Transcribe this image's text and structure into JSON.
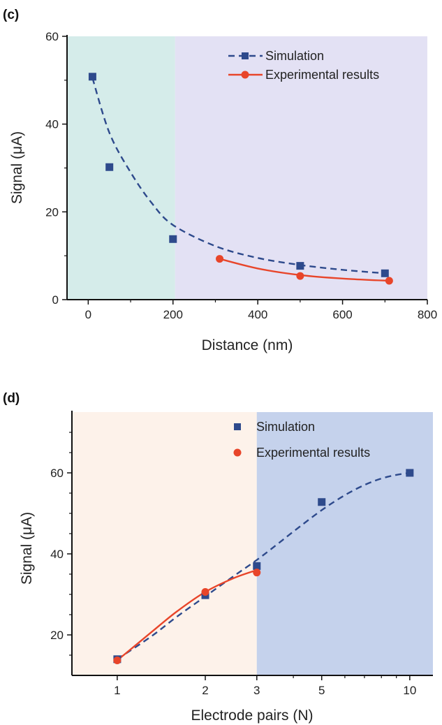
{
  "chart_data": [
    {
      "panel_label": "(c)",
      "type": "line",
      "xlabel": "Distance (nm)",
      "ylabel": "Signal (μA)",
      "xlim": [
        -50,
        800
      ],
      "ylim": [
        0,
        60
      ],
      "xticks": [
        0,
        200,
        400,
        600,
        800
      ],
      "yticks": [
        0,
        20,
        40,
        60
      ],
      "background_regions": [
        {
          "x_from": -50,
          "x_to": 205,
          "color": "#d5ecea"
        },
        {
          "x_from": 205,
          "x_to": 800,
          "color": "#e3e1f4"
        }
      ],
      "legend_position": "top-right",
      "series": [
        {
          "name": "Simulation",
          "color": "#2e4a8c",
          "marker": "square",
          "line_style": "dashed",
          "points": [
            [
              10,
              50.8
            ],
            [
              50,
              30.2
            ],
            [
              200,
              13.8
            ],
            [
              500,
              7.7
            ],
            [
              700,
              6.0
            ]
          ],
          "fit": [
            [
              10,
              50.5
            ],
            [
              50,
              38.0
            ],
            [
              100,
              29.0
            ],
            [
              150,
              22.0
            ],
            [
              200,
              17.0
            ],
            [
              300,
              12.2
            ],
            [
              400,
              9.5
            ],
            [
              500,
              7.9
            ],
            [
              600,
              6.8
            ],
            [
              700,
              6.0
            ]
          ]
        },
        {
          "name": "Experimental results",
          "color": "#e8452a",
          "marker": "circle",
          "line_style": "solid",
          "points": [
            [
              310,
              9.3
            ],
            [
              500,
              5.4
            ],
            [
              710,
              4.3
            ]
          ],
          "fit": [
            [
              310,
              9.3
            ],
            [
              400,
              7.1
            ],
            [
              500,
              5.6
            ],
            [
              600,
              4.8
            ],
            [
              710,
              4.3
            ]
          ]
        }
      ]
    },
    {
      "panel_label": "(d)",
      "type": "line",
      "xlabel": "Electrode pairs (N)",
      "ylabel": "Signal (μA)",
      "x_scale": "log",
      "xlim": [
        0.7,
        12
      ],
      "ylim": [
        10,
        75
      ],
      "xticks": [
        1,
        2,
        3,
        5,
        10
      ],
      "yticks": [
        20,
        40,
        60
      ],
      "background_regions": [
        {
          "x_from": 0.7,
          "x_to": 3,
          "color": "#fdf2ea"
        },
        {
          "x_from": 3,
          "x_to": 12,
          "color": "#c5d2ec"
        }
      ],
      "legend_position": "top-right",
      "series": [
        {
          "name": "Simulation",
          "color": "#2e4a8c",
          "marker": "square",
          "line_style": "dashed",
          "points": [
            [
              1,
              14
            ],
            [
              2,
              29.8
            ],
            [
              3,
              37
            ],
            [
              5,
              52.8
            ],
            [
              10,
              60
            ]
          ],
          "fit": [
            [
              1,
              14
            ],
            [
              1.3,
              19.5
            ],
            [
              1.6,
              24.5
            ],
            [
              2,
              29.5
            ],
            [
              2.5,
              34.5
            ],
            [
              3,
              38.5
            ],
            [
              3.5,
              42.2
            ],
            [
              4,
              45.5
            ],
            [
              5,
              50.8
            ],
            [
              6,
              54.5
            ],
            [
              7,
              57
            ],
            [
              8,
              58.6
            ],
            [
              9,
              59.5
            ],
            [
              10,
              60
            ]
          ]
        },
        {
          "name": "Experimental results",
          "color": "#e8452a",
          "marker": "circle",
          "line_style": "solid",
          "points": [
            [
              1,
              13.7
            ],
            [
              2,
              30.6
            ],
            [
              3,
              35.4
            ]
          ],
          "fit": [
            [
              1,
              13.7
            ],
            [
              1.3,
              20.5
            ],
            [
              1.6,
              25.8
            ],
            [
              2,
              30.6
            ],
            [
              2.5,
              34
            ],
            [
              3,
              36
            ]
          ]
        }
      ]
    }
  ]
}
